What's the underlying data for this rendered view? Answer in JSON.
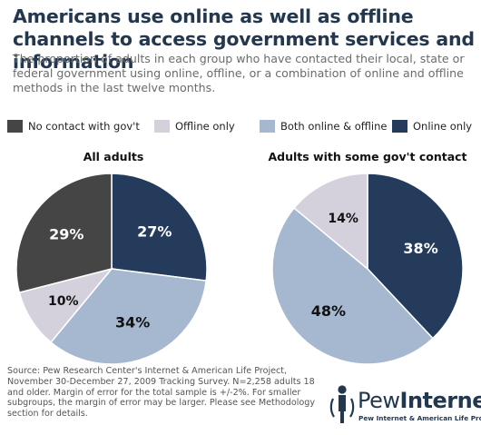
{
  "title": "Americans use online as well as offline channels to access government services and information",
  "subtitle": "The proportion of adults in each group who have contacted their local, state or federal government using online, offline, or a combination of online and offline methods in the last twelve months.",
  "legend": [
    {
      "label": "No contact with gov't",
      "color": "#454545"
    },
    {
      "label": "Offline only",
      "color": "#d4d1dd"
    },
    {
      "label": "Both online & offline",
      "color": "#a5b8d0"
    },
    {
      "label": "Online only",
      "color": "#243b5c"
    }
  ],
  "chart_data": [
    {
      "type": "pie",
      "title": "All adults",
      "slices": [
        {
          "label": "Online only",
          "value": 27,
          "text": "27%",
          "color": "#243b5c",
          "text_color": "#ffffff"
        },
        {
          "label": "Both online & offline",
          "value": 34,
          "text": "34%",
          "color": "#a5b8d0",
          "text_color": "#111111"
        },
        {
          "label": "Offline only",
          "value": 10,
          "text": "10%",
          "color": "#d4d1dd",
          "text_color": "#111111"
        },
        {
          "label": "No contact with gov't",
          "value": 29,
          "text": "29%",
          "color": "#454545",
          "text_color": "#ffffff"
        }
      ]
    },
    {
      "type": "pie",
      "title": "Adults with some gov't contact",
      "slices": [
        {
          "label": "Online only",
          "value": 38,
          "text": "38%",
          "color": "#243b5c",
          "text_color": "#ffffff"
        },
        {
          "label": "Both online & offline",
          "value": 48,
          "text": "48%",
          "color": "#a5b8d0",
          "text_color": "#111111"
        },
        {
          "label": "Offline only",
          "value": 14,
          "text": "14%",
          "color": "#d4d1dd",
          "text_color": "#111111"
        }
      ]
    }
  ],
  "source": "Source: Pew Research Center's Internet & American Life Project, November 30-December 27, 2009 Tracking Survey. N=2,258 adults 18 and older. Margin of error for the total sample is +/-2%. For smaller subgroups, the margin of error may be larger. Please see Methodology section for details.",
  "logo": {
    "word1": "Pew",
    "word2": "Internet",
    "tagline": "Pew Internet & American Life Project"
  }
}
